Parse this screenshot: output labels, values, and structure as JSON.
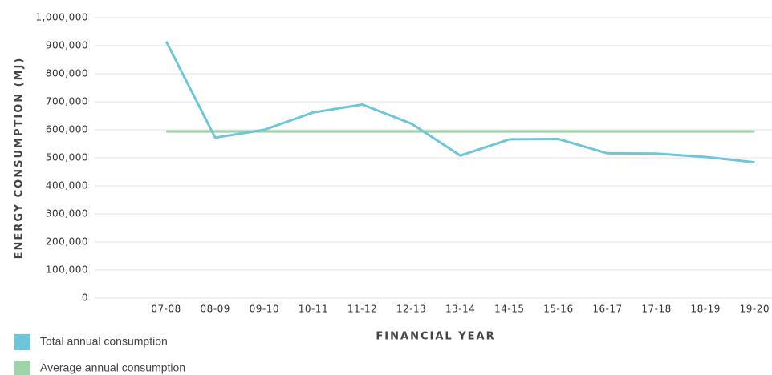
{
  "chart_data": {
    "type": "line",
    "y_label": "ENERGY CONSUMPTION (MJ)",
    "x_label": "FINANCIAL YEAR",
    "categories": [
      null,
      "07-08",
      "08-09",
      "09-10",
      "10-11",
      "11-12",
      "12-13",
      "13-14",
      "14-15",
      "15-16",
      "16-17",
      "17-18",
      "18-19",
      "19-20"
    ],
    "series": [
      {
        "name": "Total annual consumption",
        "color": "#6ec6da",
        "values": [
          null,
          915000,
          572000,
          600000,
          662000,
          690000,
          622000,
          508000,
          566000,
          567000,
          516000,
          515000,
          503000,
          484000
        ]
      },
      {
        "name": "Average annual consumption",
        "color": "#9fd3a8",
        "values": [
          null,
          594000,
          594000,
          594000,
          594000,
          594000,
          594000,
          594000,
          594000,
          594000,
          594000,
          594000,
          594000,
          594000
        ]
      }
    ],
    "ylim": [
      0,
      1000000
    ],
    "yticks": [
      0,
      {
        "value": 100000,
        "label": "100,000"
      },
      {
        "value": 200000,
        "label": "200,000"
      },
      {
        "value": 300000,
        "label": "300,000"
      },
      {
        "value": 400000,
        "label": "400,000"
      },
      {
        "value": 500000,
        "label": "500,000"
      },
      {
        "value": 600000,
        "label": "600,000"
      },
      {
        "value": 700000,
        "label": "700,000"
      },
      {
        "value": 800000,
        "label": "800,000"
      },
      {
        "value": 900000,
        "label": "900,000"
      },
      {
        "value": 1000000,
        "label": "1,000,000"
      }
    ],
    "grid": true
  }
}
